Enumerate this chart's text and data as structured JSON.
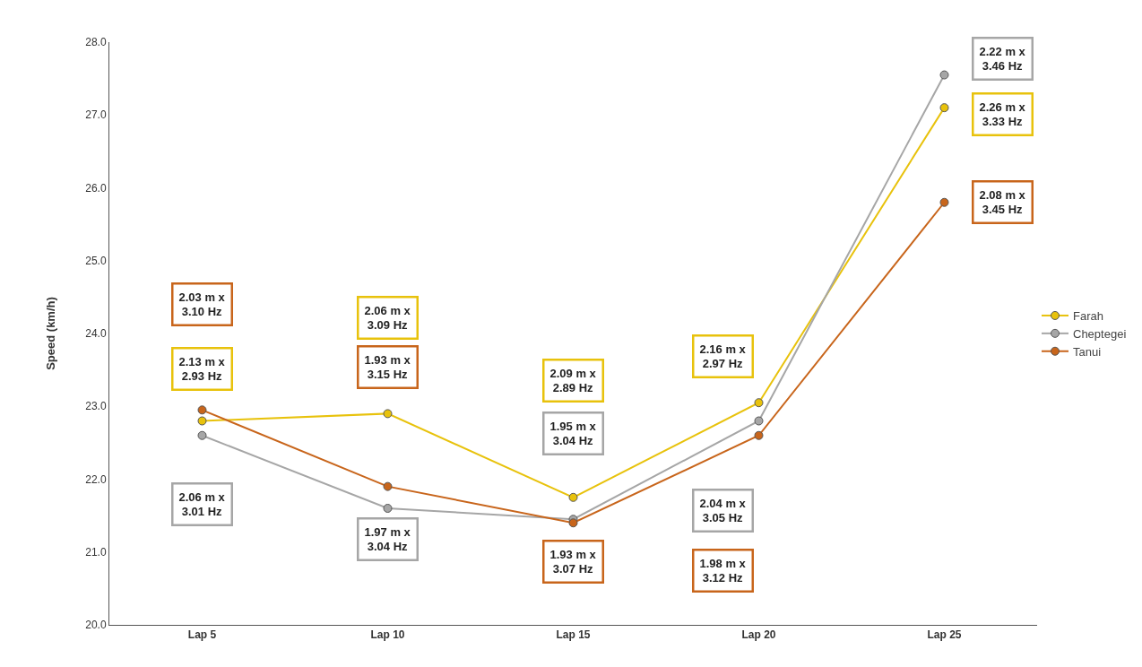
{
  "chart_data": {
    "type": "line",
    "ylabel": "Speed (km/h)",
    "categories": [
      "Lap 5",
      "Lap 10",
      "Lap 15",
      "Lap 20",
      "Lap 25"
    ],
    "series": [
      {
        "name": "Farah",
        "color": "#e8c20c",
        "values": [
          22.8,
          22.9,
          21.75,
          23.05,
          27.1
        ]
      },
      {
        "name": "Cheptegei",
        "color": "#a6a6a6",
        "values": [
          22.6,
          21.6,
          21.45,
          22.8,
          27.55
        ]
      },
      {
        "name": "Tanui",
        "color": "#c8651b",
        "values": [
          22.95,
          21.9,
          21.4,
          22.6,
          25.8
        ]
      }
    ],
    "ylim": [
      20,
      28
    ],
    "yticks": [
      {
        "value": 20,
        "label": "20.0"
      },
      {
        "value": 21,
        "label": "21.0"
      },
      {
        "value": 22,
        "label": "22.0"
      },
      {
        "value": 23,
        "label": "23.0"
      },
      {
        "value": 24,
        "label": "24.0"
      },
      {
        "value": 25,
        "label": "25.0"
      },
      {
        "value": 26,
        "label": "26.0"
      },
      {
        "value": 27,
        "label": "27.0"
      },
      {
        "value": 28,
        "label": "28.0"
      }
    ],
    "grid": false,
    "legend": "right",
    "marker": "circle",
    "line_style": "solid",
    "annotations": [
      "2.03 m x\n3.10 Hz",
      "2.13 m x\n2.93 Hz",
      "2.06 m x\n3.01 Hz",
      "2.06 m x\n3.09 Hz",
      "1.93 m x\n3.15 Hz",
      "1.97 m x\n3.04 Hz",
      "2.09 m x\n2.89 Hz",
      "1.95 m x\n3.04 Hz",
      "1.93 m x\n3.07 Hz",
      "2.16 m x\n2.97 Hz",
      "2.04 m x\n3.05 Hz",
      "1.98 m x\n3.12 Hz",
      "2.22 m x\n3.46 Hz",
      "2.26 m x\n3.33 Hz",
      "2.08 m x\n3.45 Hz"
    ]
  }
}
